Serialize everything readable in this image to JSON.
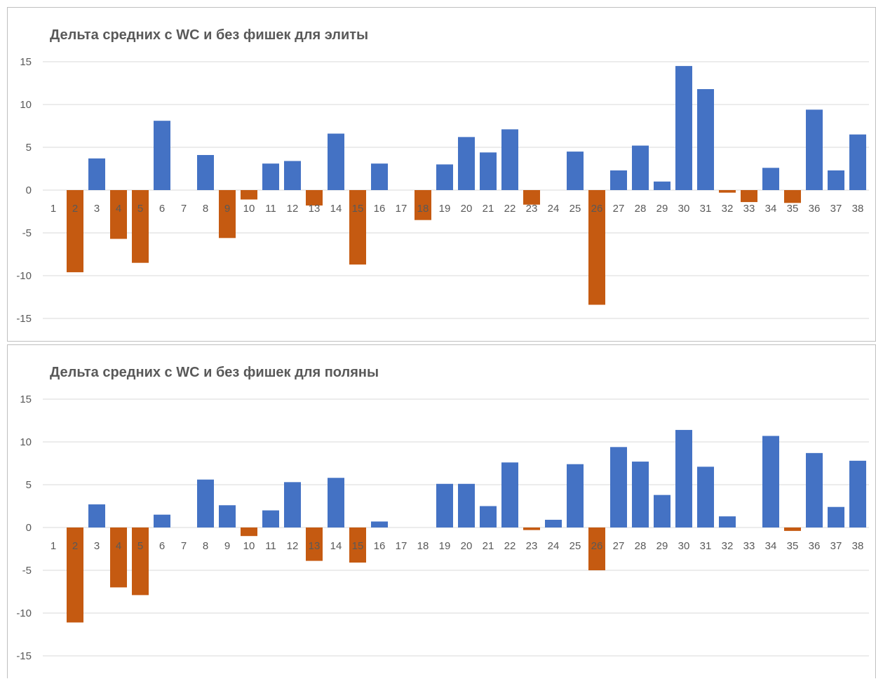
{
  "colors": {
    "positive": "#4472C4",
    "negative": "#C55A11",
    "grid": "#d9d9d9",
    "text": "#595959"
  },
  "chart_data": [
    {
      "type": "bar",
      "title": "Дельта средних с WC и без фишек для элиты",
      "ylim": [
        -15,
        15
      ],
      "yticks": [
        "15",
        "10",
        "5",
        "0",
        "-5",
        "-10",
        "-15"
      ],
      "grid": true,
      "legend": "none",
      "categories": [
        "1",
        "2",
        "3",
        "4",
        "5",
        "6",
        "7",
        "8",
        "9",
        "10",
        "11",
        "12",
        "13",
        "14",
        "15",
        "16",
        "17",
        "18",
        "19",
        "20",
        "21",
        "22",
        "23",
        "24",
        "25",
        "26",
        "27",
        "28",
        "29",
        "30",
        "31",
        "32",
        "33",
        "34",
        "35",
        "36",
        "37",
        "38"
      ],
      "values": [
        0,
        -9.6,
        3.7,
        -5.7,
        -8.5,
        8.1,
        0,
        4.1,
        -5.6,
        -1.1,
        3.1,
        3.4,
        -1.8,
        6.6,
        -8.7,
        3.1,
        0,
        -3.5,
        3.0,
        6.2,
        4.4,
        7.1,
        -1.7,
        0,
        4.5,
        -13.4,
        2.3,
        5.2,
        1.0,
        14.5,
        11.8,
        -0.3,
        -1.4,
        2.6,
        -1.5,
        9.4,
        2.3,
        6.5
      ]
    },
    {
      "type": "bar",
      "title": "Дельта средних с WC и без фишек для поляны",
      "ylim": [
        -15,
        15
      ],
      "yticks": [
        "15",
        "10",
        "5",
        "0",
        "-5",
        "-10",
        "-15"
      ],
      "grid": true,
      "legend": "none",
      "categories": [
        "1",
        "2",
        "3",
        "4",
        "5",
        "6",
        "7",
        "8",
        "9",
        "10",
        "11",
        "12",
        "13",
        "14",
        "15",
        "16",
        "17",
        "18",
        "19",
        "20",
        "21",
        "22",
        "23",
        "24",
        "25",
        "26",
        "27",
        "28",
        "29",
        "30",
        "31",
        "32",
        "33",
        "34",
        "35",
        "36",
        "37",
        "38"
      ],
      "values": [
        0,
        -11.1,
        2.7,
        -7.0,
        -7.9,
        1.5,
        0,
        5.6,
        2.6,
        -1.0,
        2.0,
        5.3,
        -3.9,
        5.8,
        -4.1,
        0.7,
        0,
        0,
        5.1,
        5.1,
        2.5,
        7.6,
        -0.3,
        0.9,
        7.4,
        -5.0,
        9.4,
        7.7,
        3.8,
        11.4,
        7.1,
        1.3,
        0,
        10.7,
        -0.4,
        8.7,
        2.4,
        7.8
      ]
    }
  ]
}
